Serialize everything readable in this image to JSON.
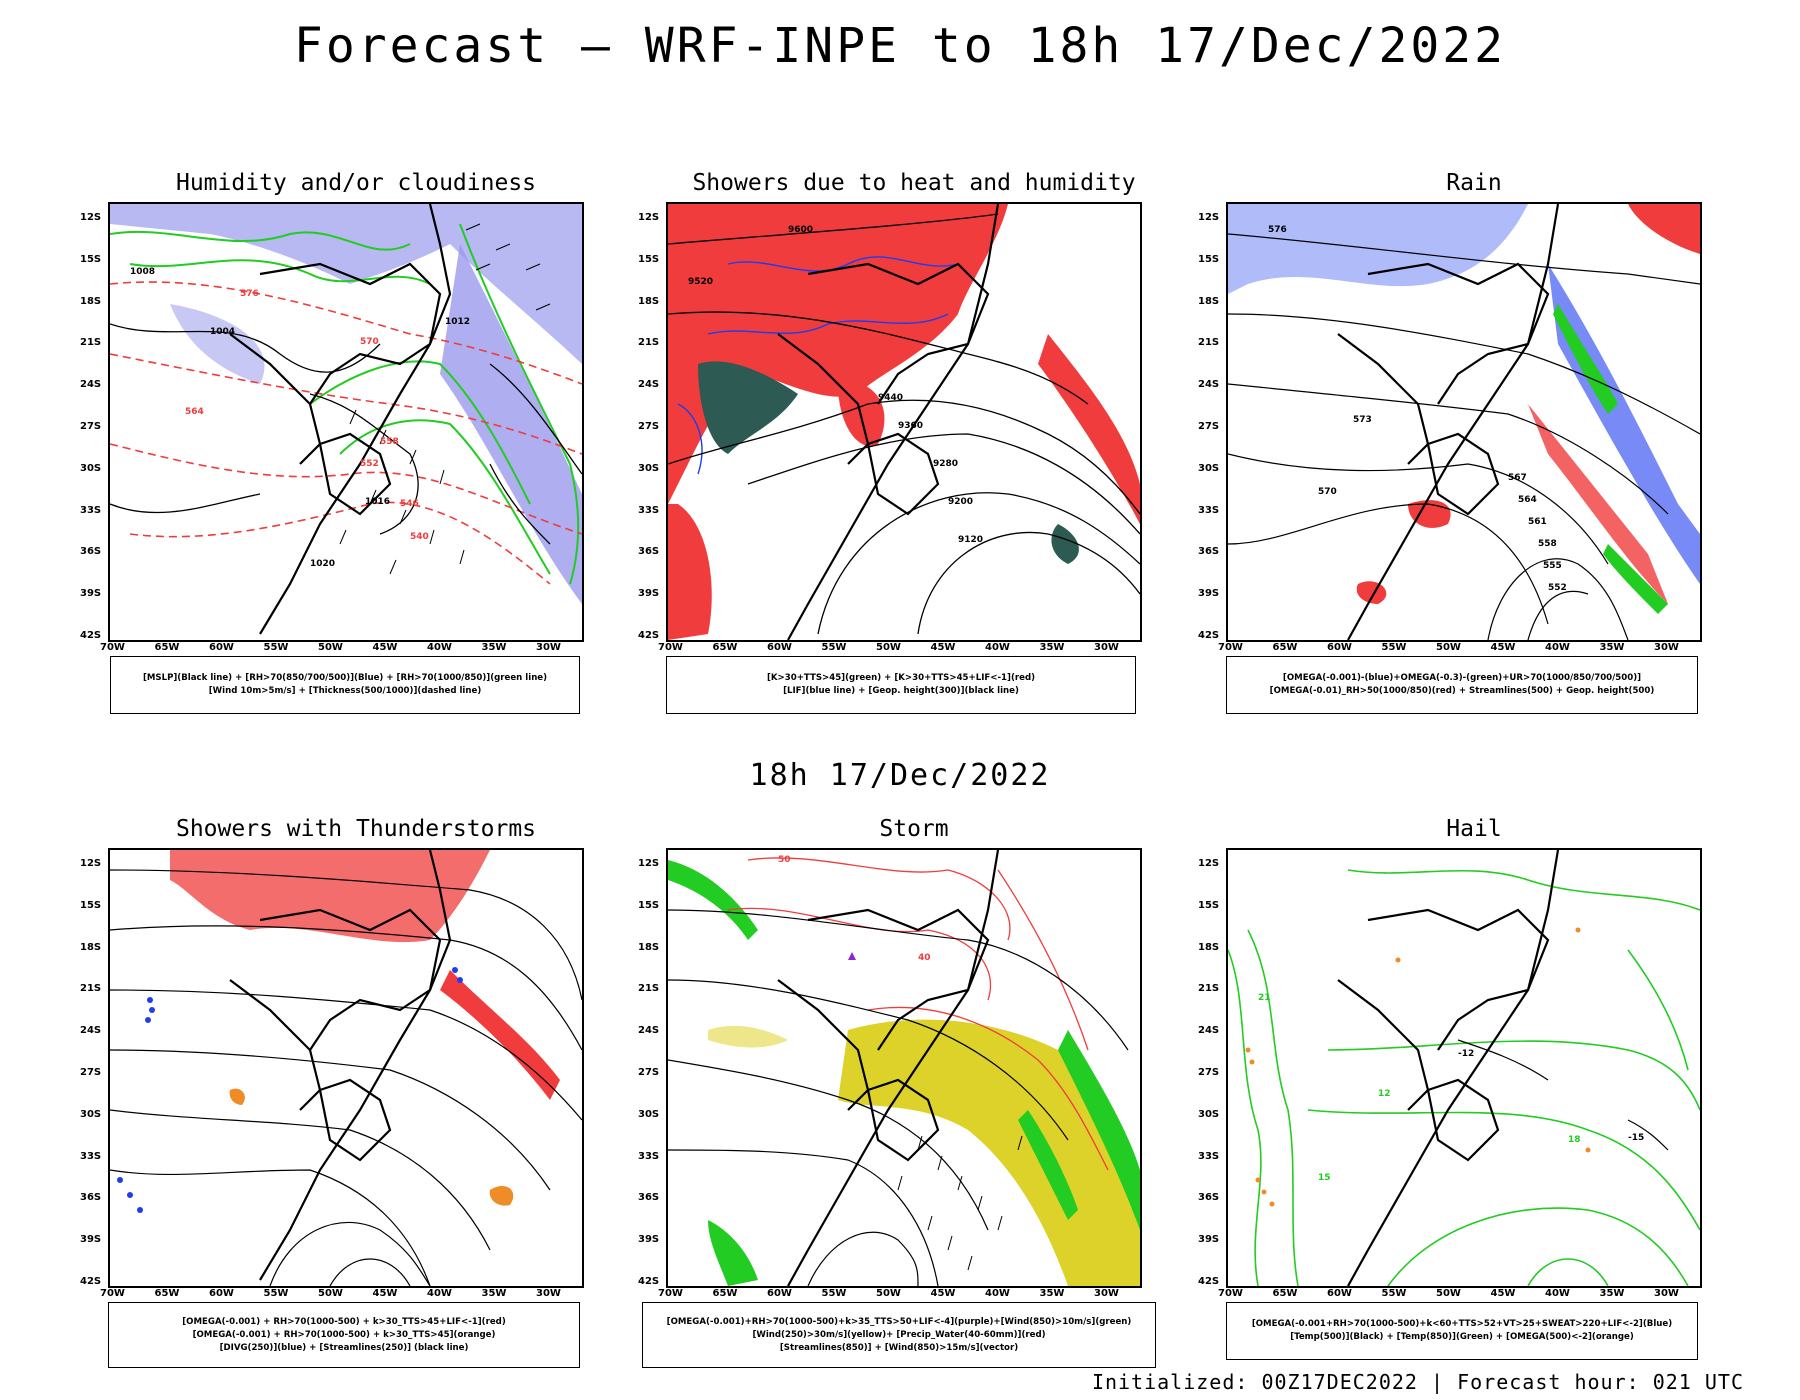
{
  "header": {
    "title": "Forecast – WRF-INPE to 18h 17/Dec/2022"
  },
  "middle_title": "18h 17/Dec/2022",
  "footer": {
    "text": "Initialized: 00Z17DEC2022 | Forecast hour: 021 UTC"
  },
  "axes": {
    "lat_labels": [
      "12S",
      "15S",
      "18S",
      "21S",
      "24S",
      "27S",
      "30S",
      "33S",
      "36S",
      "39S",
      "42S"
    ],
    "lon_labels": [
      "70W",
      "65W",
      "60W",
      "55W",
      "50W",
      "45W",
      "40W",
      "35W",
      "30W"
    ]
  },
  "panels": [
    {
      "title": "Humidity and/or cloudiness",
      "legend": [
        "[MSLP](Black line) + [RH>70(850/700/500)](Blue) + [RH>70(1000/850)](green line)",
        "[Wind 10m>5m/s] + [Thickness(500/1000)](dashed line)"
      ],
      "contour_labels": [
        "1008",
        "1004",
        "1012",
        "1016",
        "1020",
        "576",
        "570",
        "564",
        "558",
        "552",
        "546",
        "540"
      ]
    },
    {
      "title": "Showers due to heat and humidity",
      "legend": [
        "[K>30+TTS>45](green) + [K>30+TTS>45+LIF<-1](red)",
        "[LIF](blue line) + [Geop. height(300)](black line)"
      ],
      "contour_labels": [
        "9600",
        "9520",
        "9440",
        "9360",
        "9280",
        "9200",
        "9120"
      ]
    },
    {
      "title": "Rain",
      "legend": [
        "[OMEGA(-0.001)-(blue)+OMEGA(-0.3)-(green)+UR>70(1000/850/700/500)]",
        "[OMEGA(-0.01)_RH>50(1000/850)(red) + Streamlines(500) + Geop. height(500)"
      ],
      "contour_labels": [
        "576",
        "573",
        "570",
        "567",
        "564",
        "561",
        "558",
        "555",
        "552"
      ]
    },
    {
      "title": "Showers with Thunderstorms",
      "legend": [
        "[OMEGA(-0.001) + RH>70(1000-500) + k>30_TTS>45+LIF<-1](red)",
        "[OMEGA(-0.001) + RH>70(1000-500) + k>30_TTS>45](orange)",
        "[DIVG(250)](blue) + [Streamlines(250)] (black line)"
      ],
      "contour_labels": []
    },
    {
      "title": "Storm",
      "legend": [
        "[OMEGA(-0.001)+RH>70(1000-500)+k>35_TTS>50+LIF<-4](purple)+[Wind(850)>10m/s](green)",
        "[Wind(250)>30m/s](yellow)+ [Precip_Water(40-60mm)](red)",
        "[Streamlines(850)] + [Wind(850)>15m/s](vector)"
      ],
      "contour_labels": [
        "50",
        "40"
      ]
    },
    {
      "title": "Hail",
      "legend": [
        "[OMEGA(-0.001+RH>70(1000-500)+k<60+TTS>52+VT>25+SWEAT>220+LIF<-2](Blue)",
        "[Temp(500)](Black) + [Temp(850)](Green) + [OMEGA(500)<-2](orange)"
      ],
      "contour_labels": [
        "-12",
        "-15",
        "12",
        "15",
        "18",
        "21"
      ]
    }
  ],
  "colors": {
    "red": "#f03c3c",
    "green": "#22cc22",
    "blue": "#1e3cf0",
    "lavender": "#9a9aee",
    "darkteal": "#2d5a52",
    "yellow": "#dcd22a",
    "orange": "#f08c28",
    "purple": "#8c28c8"
  }
}
